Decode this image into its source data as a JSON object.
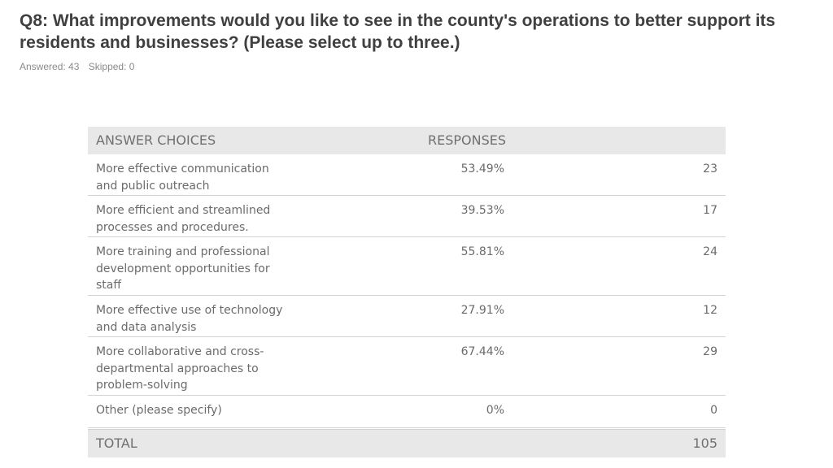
{
  "question": {
    "text": "Q8: What improvements would you like to see in the county's operations to better support its residents and businesses? (Please select up to three.)"
  },
  "stats": {
    "answered": "Answered: 43",
    "skipped": "Skipped: 0"
  },
  "table": {
    "header_choices": "ANSWER CHOICES",
    "header_responses": "RESPONSES",
    "rows": [
      {
        "label": "More effective communication and public outreach",
        "percent": "53.49%",
        "count": "23"
      },
      {
        "label": "More efficient and streamlined processes and procedures.",
        "percent": "39.53%",
        "count": "17"
      },
      {
        "label": "More training and professional development opportunities for staff",
        "percent": "55.81%",
        "count": "24"
      },
      {
        "label": "More effective use of technology and data analysis",
        "percent": "27.91%",
        "count": "12"
      },
      {
        "label": "More collaborative and cross-departmental approaches to problem-solving",
        "percent": "67.44%",
        "count": "29"
      },
      {
        "label": "Other (please specify)",
        "percent": "0%",
        "count": "0"
      }
    ],
    "total_label": "TOTAL",
    "total_value": "105"
  }
}
